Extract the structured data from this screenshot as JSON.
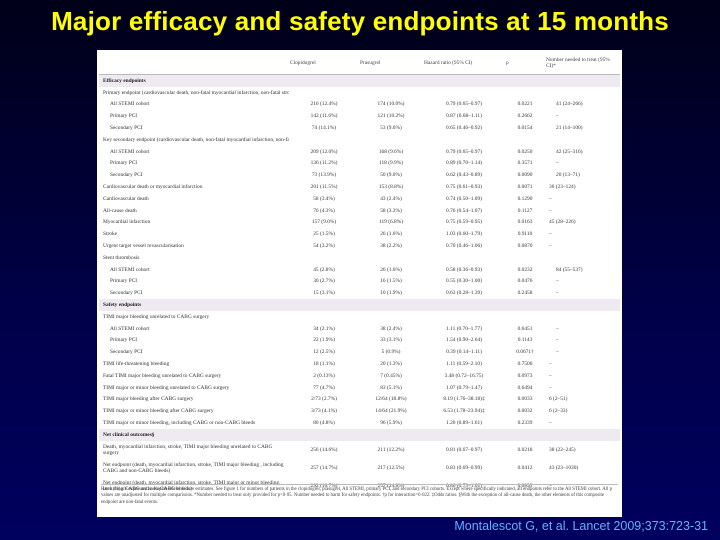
{
  "title": "Major efficacy and safety endpoints at 15 months",
  "citation": "Montalescot G, et al. Lancet 2009;373:723-31",
  "table": {
    "headers": {
      "endpoint": "",
      "clopidogrel": "Clopidogrel",
      "prasugrel": "Prasugrel",
      "hr": "Hazard ratio (95% CI)",
      "p": "p",
      "nnt": "Number needed to treat (95% CI)*"
    },
    "rows": [
      {
        "type": "section",
        "label": "Efficacy endpoints"
      },
      {
        "label": "Primary endpoint (cardiovascular death, non-fatal myocardial infarction, non-fatal stroke)"
      },
      {
        "indent": true,
        "label": "All STEMI cohort",
        "clop": "216 (12.4%)",
        "pras": "174 (10.0%)",
        "hr": "0.79 (0.65–0.97)",
        "p": "0.0221",
        "nnt": "41 (24–266)"
      },
      {
        "indent": true,
        "label": "Primary PCI",
        "clop": "142 (11.6%)",
        "pras": "121 (10.2%)",
        "hr": "0.87 (0.68–1.11)",
        "p": "0.2662",
        "nnt": "–"
      },
      {
        "indent": true,
        "label": "Secondary PCI",
        "clop": "74 (14.1%)",
        "pras": "53 (9.6%)",
        "hr": "0.65 (0.46–0.92)",
        "p": "0.0154",
        "nnt": "21 (14–100)"
      },
      {
        "label": "Key secondary endpoint (cardiovascular death, non-fatal myocardial infarction, non-fatal urgent target vessel revascularisation)"
      },
      {
        "indent": true,
        "label": "All STEMI cohort",
        "clop": "209 (12.0%)",
        "pras": "168 (9.6%)",
        "hr": "0.79 (0.65–0.97)",
        "p": "0.0250",
        "nnt": "42 (25–316)"
      },
      {
        "indent": true,
        "label": "Primary PCI",
        "clop": "136 (11.2%)",
        "pras": "118 (9.9%)",
        "hr": "0.89 (0.70–1.14)",
        "p": "0.3571",
        "nnt": "–"
      },
      {
        "indent": true,
        "label": "Secondary PCI",
        "clop": "73 (13.9%)",
        "pras": "50 (9.0%)",
        "hr": "0.62 (0.43–0.89)",
        "p": "0.0090",
        "nnt": "20 (13–71)"
      },
      {
        "label": "Cardiovascular death or myocardial infarction",
        "clop": "201 (11.5%)",
        "pras": "153 (8.8%)",
        "hr": "0.75 (0.61–0.93)",
        "p": "0.0071",
        "nnt": "36 (23–124)"
      },
      {
        "label": "Cardiovascular death",
        "clop": "58 (3.4%)",
        "pras": "43 (2.4%)",
        "hr": "0.74 (0.50–1.09)",
        "p": "0.1290",
        "nnt": "–"
      },
      {
        "label": "All-cause death",
        "clop": "76 (4.3%)",
        "pras": "58 (3.3%)",
        "hr": "0.76 (0.54–1.07)",
        "p": "0.1127",
        "nnt": "–"
      },
      {
        "label": "Myocardial infarction",
        "clop": "157 (9.0%)",
        "pras": "119 (6.8%)",
        "hr": "0.75 (0.59–0.95)",
        "p": "0.0163",
        "nnt": "45 (28–226)"
      },
      {
        "label": "Stroke",
        "clop": "25 (1.5%)",
        "pras": "26 (1.6%)",
        "hr": "1.03 (0.60–1.79)",
        "p": "0.9110",
        "nnt": "–"
      },
      {
        "label": "Urgent target vessel revascularisation",
        "clop": "54 (3.2%)",
        "pras": "38 (2.2%)",
        "hr": "0.70 (0.46–1.06)",
        "p": "0.0870",
        "nnt": "–"
      },
      {
        "label": "Stent thrombosis"
      },
      {
        "indent": true,
        "label": "All STEMI cohort",
        "clop": "45 (2.8%)",
        "pras": "26 (1.6%)",
        "hr": "0.58 (0.36–0.93)",
        "p": "0.0232",
        "nnt": "84 (55–537)"
      },
      {
        "indent": true,
        "label": "Primary PCI",
        "clop": "30 (2.7%)",
        "pras": "16 (1.5%)",
        "hr": "0.55 (0.30–1.00)",
        "p": "0.0476",
        "nnt": "–"
      },
      {
        "indent": true,
        "label": "Secondary PCI",
        "clop": "15 (3.1%)",
        "pras": "10 (1.9%)",
        "hr": "0.63 (0.28–1.39)",
        "p": "0.2458",
        "nnt": "–"
      },
      {
        "type": "section",
        "label": "Safety endpoints"
      },
      {
        "label": "TIMI major bleeding unrelated to CABG surgery"
      },
      {
        "indent": true,
        "label": "All STEMI cohort",
        "clop": "34 (2.1%)",
        "pras": "38 (2.4%)",
        "hr": "1.11 (0.70–1.77)",
        "p": "0.6451",
        "nnt": "–"
      },
      {
        "indent": true,
        "label": "Primary PCI",
        "clop": "22 (1.9%)",
        "pras": "33 (3.1%)",
        "hr": "1.54 (0.90–2.64)",
        "p": "0.1143",
        "nnt": "–"
      },
      {
        "indent": true,
        "label": "Secondary PCI",
        "clop": "12 (2.5%)",
        "pras": "5 (0.9%)",
        "hr": "0.39 (0.14–1.11)",
        "p": "0.0671†",
        "nnt": "–"
      },
      {
        "label": "TIMI life-threatening bleeding",
        "clop": "18 (1.1%)",
        "pras": "20 (1.3%)",
        "hr": "1.11 (0.59–2.10)",
        "p": "0.7500",
        "nnt": "–"
      },
      {
        "label": "Fatal TIMI major bleeding unrelated to CABG surgery",
        "clop": "2 (0.13%)",
        "pras": "7 (0.45%)",
        "hr": "3.48 (0.72–16.75)",
        "p": "0.0973",
        "nnt": "–"
      },
      {
        "label": "TIMI major or minor bleeding unrelated to CABG surgery",
        "clop": "77 (4.7%)",
        "pras": "83 (5.1%)",
        "hr": "1.07 (0.79–1.47)",
        "p": "0.6494",
        "nnt": "–"
      },
      {
        "label": "TIMI major bleeding after CABG surgery",
        "clop": "2/73 (2.7%)",
        "pras": "12/64 (18.8%)",
        "hr": "8.19 (1.76–38.18)‡",
        "p": "0.0033",
        "nnt": "6 (2–51)"
      },
      {
        "label": "TIMI major or minor bleeding after CABG surgery",
        "clop": "3/73 (4.1%)",
        "pras": "14/64 (21.9%)",
        "hr": "6.53 (1.78–23.94)‡",
        "p": "0.0032",
        "nnt": "6 (2–33)"
      },
      {
        "label": "TIMI major or minor bleeding, including CABG or non-CABG bleeds",
        "clop": "80 (4.8%)",
        "pras": "96 (5.9%)",
        "hr": "1.20 (0.89–1.61)",
        "p": "0.2339",
        "nnt": "–"
      },
      {
        "type": "section",
        "label": "Net clinical outcomes§"
      },
      {
        "two": true,
        "label": "Death, myocardial infarction, stroke, TIMI major bleeding unrelated to CABG surgery",
        "clop": "256 (14.6%)",
        "pras": "211 (12.2%)",
        "hr": "0.81 (0.67–0.97)",
        "p": "0.0218",
        "nnt": "38 (22–245)"
      },
      {
        "two": true,
        "label": "Net endpoint (death, myocardial infarction, stroke, TIMI major bleeding , including CABG and non-CABG bleeds)",
        "clop": "257 (14.7%)",
        "pras": "217 (12.5%)",
        "hr": "0.83 (0.69–0.99)",
        "p": "0.0412",
        "nnt": "43 (23–1030)"
      },
      {
        "two": true,
        "label": "Net endpoint (death, myocardial infarction, stroke, TIMI major or minor bleeding, including CABG and non-CABG bleeds)",
        "clop": "292 (16.7%)",
        "pras": "257 (14.8%)",
        "hr": "0.86 (0.73–1.02)",
        "p": "0.0893",
        "nnt": "–"
      }
    ],
    "footnote": "Rates (%) are expressed as Kaplan-Meier failure estimates. See figure 1 for numbers of patients in the clopidogrel, prasugrel, All STEMI, primary PCI, and secondary PCI cohorts. Except where specifically indicated, all endpoints refer to the All STEMI cohort. All p values are unadjusted for multiple comparisons. *Number needed to treat only provided for p<0·05. Number needed to harm for safety endpoints. †p for interaction=0·022. ‡Odds ratios. §With the exception of all-cause death, the other elements of this composite endpoint are non-fatal events."
  }
}
